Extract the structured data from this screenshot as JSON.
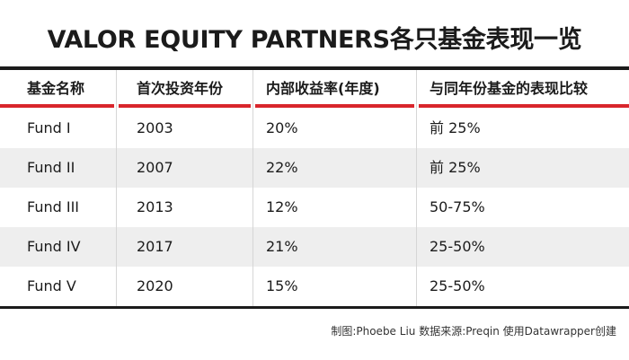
{
  "title": "VALOR EQUITY PARTNERS各只基金表现一览",
  "colors": {
    "header_rule": "#d9262c",
    "row_shade": "#eeeeee",
    "rule": "#1b1b1b"
  },
  "chart_data": {
    "type": "table",
    "title": "VALOR EQUITY PARTNERS各只基金表现一览",
    "columns": [
      "基金名称",
      "首次投资年份",
      "内部收益率(年度)",
      "与同年份基金的表现比较"
    ],
    "rows": [
      [
        "Fund I",
        "2003",
        "20%",
        "前 25%"
      ],
      [
        "Fund II",
        "2007",
        "22%",
        "前 25%"
      ],
      [
        "Fund III",
        "2013",
        "12%",
        "50-75%"
      ],
      [
        "Fund IV",
        "2017",
        "21%",
        "25-50%"
      ],
      [
        "Fund V",
        "2020",
        "15%",
        "25-50%"
      ]
    ]
  },
  "footer": "制图:Phoebe Liu  数据来源:Preqin  使用Datawrapper创建"
}
